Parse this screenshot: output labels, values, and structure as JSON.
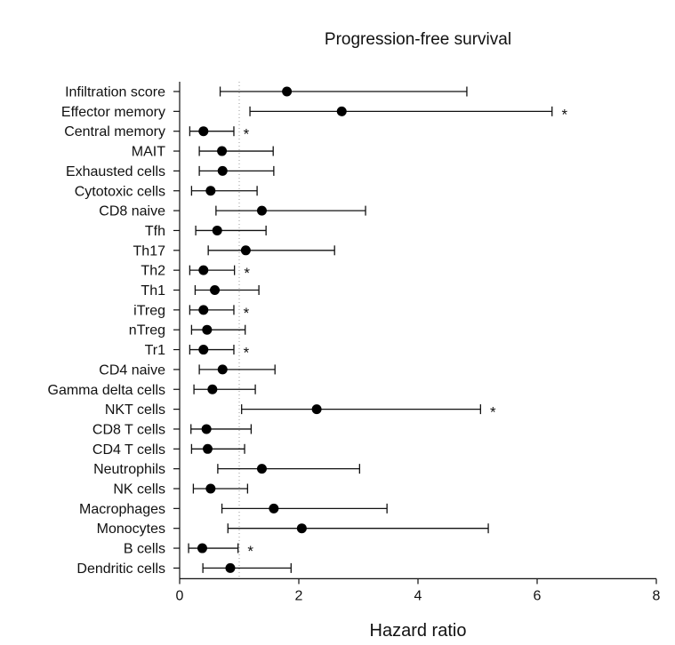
{
  "chart_data": {
    "type": "forest",
    "title": "Progression-free survival",
    "xlabel": "Hazard ratio",
    "xlim": [
      0,
      8
    ],
    "xticks": [
      0,
      2,
      4,
      6,
      8
    ],
    "reference_line": 1,
    "grid": false,
    "rows": [
      {
        "label": "Infiltration score",
        "hr": 1.8,
        "lo": 0.68,
        "hi": 4.82,
        "sig": ""
      },
      {
        "label": "Effector memory",
        "hr": 2.72,
        "lo": 1.18,
        "hi": 6.25,
        "sig": "*"
      },
      {
        "label": "Central memory",
        "hr": 0.4,
        "lo": 0.17,
        "hi": 0.91,
        "sig": "*"
      },
      {
        "label": "MAIT",
        "hr": 0.71,
        "lo": 0.33,
        "hi": 1.57,
        "sig": ""
      },
      {
        "label": "Exhausted cells",
        "hr": 0.72,
        "lo": 0.33,
        "hi": 1.58,
        "sig": ""
      },
      {
        "label": "Cytotoxic cells",
        "hr": 0.52,
        "lo": 0.2,
        "hi": 1.3,
        "sig": ""
      },
      {
        "label": "CD8 naive",
        "hr": 1.38,
        "lo": 0.61,
        "hi": 3.12,
        "sig": ""
      },
      {
        "label": "Tfh",
        "hr": 0.63,
        "lo": 0.27,
        "hi": 1.45,
        "sig": ""
      },
      {
        "label": "Th17",
        "hr": 1.11,
        "lo": 0.48,
        "hi": 2.6,
        "sig": ""
      },
      {
        "label": "Th2",
        "hr": 0.4,
        "lo": 0.17,
        "hi": 0.92,
        "sig": "*"
      },
      {
        "label": "Th1",
        "hr": 0.59,
        "lo": 0.26,
        "hi": 1.33,
        "sig": ""
      },
      {
        "label": "iTreg",
        "hr": 0.4,
        "lo": 0.17,
        "hi": 0.91,
        "sig": "*"
      },
      {
        "label": "nTreg",
        "hr": 0.46,
        "lo": 0.2,
        "hi": 1.1,
        "sig": ""
      },
      {
        "label": "Tr1",
        "hr": 0.4,
        "lo": 0.17,
        "hi": 0.91,
        "sig": "*"
      },
      {
        "label": "CD4 naive",
        "hr": 0.72,
        "lo": 0.33,
        "hi": 1.6,
        "sig": ""
      },
      {
        "label": "Gamma delta cells",
        "hr": 0.55,
        "lo": 0.24,
        "hi": 1.27,
        "sig": ""
      },
      {
        "label": "NKT cells",
        "hr": 2.3,
        "lo": 1.04,
        "hi": 5.05,
        "sig": "*"
      },
      {
        "label": "CD8 T cells",
        "hr": 0.45,
        "lo": 0.19,
        "hi": 1.2,
        "sig": ""
      },
      {
        "label": "CD4 T cells",
        "hr": 0.47,
        "lo": 0.2,
        "hi": 1.09,
        "sig": ""
      },
      {
        "label": "Neutrophils",
        "hr": 1.38,
        "lo": 0.64,
        "hi": 3.02,
        "sig": ""
      },
      {
        "label": "NK cells",
        "hr": 0.52,
        "lo": 0.23,
        "hi": 1.14,
        "sig": ""
      },
      {
        "label": "Macrophages",
        "hr": 1.58,
        "lo": 0.71,
        "hi": 3.48,
        "sig": ""
      },
      {
        "label": "Monocytes",
        "hr": 2.05,
        "lo": 0.81,
        "hi": 5.18,
        "sig": ""
      },
      {
        "label": "B cells",
        "hr": 0.38,
        "lo": 0.15,
        "hi": 0.98,
        "sig": "*"
      },
      {
        "label": "Dendritic cells",
        "hr": 0.85,
        "lo": 0.39,
        "hi": 1.87,
        "sig": ""
      }
    ]
  }
}
